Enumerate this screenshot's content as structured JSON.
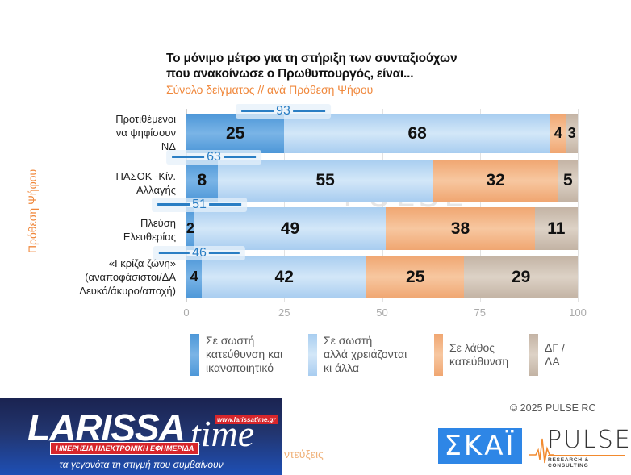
{
  "chart_data": {
    "type": "bar",
    "orientation": "horizontal-stacked",
    "title": "Το μόνιμο μέτρο  για τη στήριξη των συνταξιούχων που ανακοίνωσε ο Πρωθυπουργός, είναι...",
    "subtitle": "Σύνολο δείγματος // ανά Πρόθεση Ψήφου",
    "ylabel": "Πρόθεση Ψήφου",
    "xlabel": "",
    "xlim": [
      0,
      100
    ],
    "xticks": [
      "0",
      "25",
      "50",
      "75",
      "100"
    ],
    "categories": [
      "Προτιθέμενοι να ψηφίσουν ΝΔ",
      "ΠΑΣΟΚ -Κίν. Αλλαγής",
      "Πλεύση Ελευθερίας",
      "«Γκρίζα ζώνη» (αναποφάσιστοι/ΔΑ Λευκό/άκυρο/αποχή)"
    ],
    "series": [
      {
        "name": "Σε σωστή κατεύθυνση και ικανοποιητικό",
        "color": "#4d97d8",
        "values": [
          25,
          8,
          2,
          4
        ]
      },
      {
        "name": "Σε σωστή αλλά χρειάζονται κι άλλα",
        "color": "#b8d8f3",
        "values": [
          68,
          55,
          49,
          42
        ]
      },
      {
        "name": "Σε λάθος κατεύθυνση",
        "color": "#f2ae7c",
        "values": [
          4,
          32,
          38,
          25
        ]
      },
      {
        "name": "ΔΓ / ΔΑ",
        "color": "#cbbcae",
        "values": [
          3,
          5,
          11,
          29
        ]
      }
    ],
    "totals_positive": [
      93,
      63,
      51,
      46
    ],
    "grid": true,
    "legend_position": "bottom"
  },
  "chart": {
    "title_line1": "Το μόνιμο μέτρο  για τη στήριξη των συνταξιούχων",
    "title_line2": "που ανακοίνωσε ο Πρωθυπουργός, είναι...",
    "subtitle": "Σύνολο δείγματος // ανά Πρόθεση Ψήφου",
    "y_axis_title": "Πρόθεση Ψήφου",
    "rows": [
      {
        "label_lines": [
          "Προτιθέμενοι",
          "να ψηφίσουν",
          "ΝΔ"
        ],
        "values": [
          "25",
          "68",
          "4",
          "3"
        ],
        "total": "93"
      },
      {
        "label_lines": [
          "ΠΑΣΟΚ -Κίν.",
          "Αλλαγής"
        ],
        "values": [
          "8",
          "55",
          "32",
          "5"
        ],
        "total": "63"
      },
      {
        "label_lines": [
          "Πλεύση",
          "Ελευθερίας"
        ],
        "values": [
          "2",
          "49",
          "38",
          "11"
        ],
        "total": "51"
      },
      {
        "label_lines": [
          "«Γκρίζα ζώνη»",
          "(αναποφάσιστοι/ΔΑ",
          "Λευκό/άκυρο/αποχή)"
        ],
        "values": [
          "4",
          "42",
          "25",
          "29"
        ],
        "total": "46"
      }
    ],
    "ticks": [
      "0",
      "25",
      "50",
      "75",
      "100"
    ],
    "legend": [
      {
        "lines": [
          "Σε σωστή",
          "κατεύθυνση και",
          "ικανοποιητικό"
        ]
      },
      {
        "lines": [
          "Σε σωστή",
          "αλλά χρειάζονται",
          "κι άλλα"
        ]
      },
      {
        "lines": [
          "Σε λάθος",
          "κατεύθυνση"
        ]
      },
      {
        "lines": [
          "ΔΓ /",
          "ΔΑ"
        ]
      }
    ],
    "watermark": "PULSE",
    "watermark_sub": "RESEARCH & CONSULTING"
  },
  "footer": {
    "copyright": "©  2025  PULSE RC",
    "skai_logo": "ΣΚΑΪ",
    "pulse_logo": "PULSE",
    "pulse_sub": "RESEARCH & CONSULTING",
    "orange_fragment": "ντεύξεις"
  },
  "banner": {
    "main": "LARISSA",
    "time": "time",
    "url": "www.larissatime.gr",
    "red_label": "ΗΜΕΡΗΣΙΑ ΗΛΕΚΤΡΟΝΙΚΗ ΕΦΗΜΕΡΙΔΑ",
    "tagline": "τα γεγονότα τη στιγμή που συμβαίνουν"
  }
}
